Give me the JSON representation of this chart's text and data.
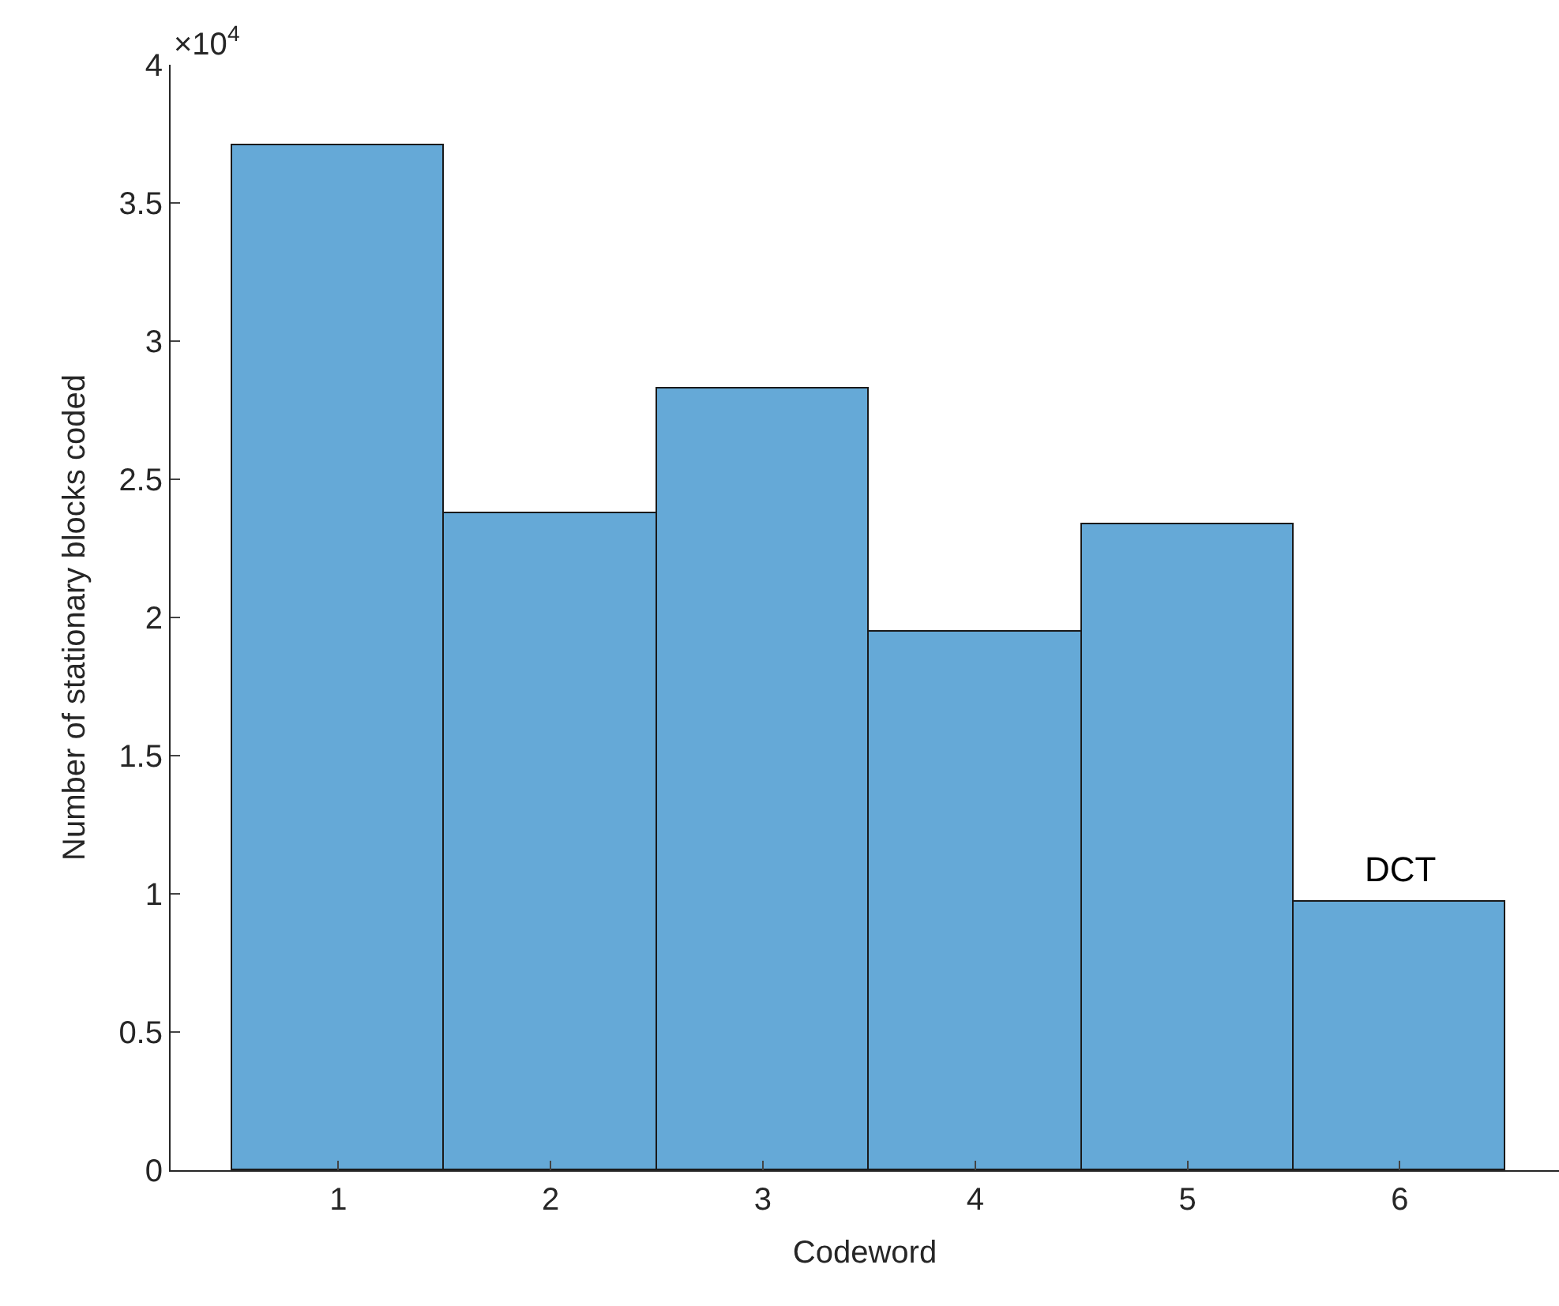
{
  "chart_data": {
    "type": "bar",
    "xlabel": "Codeword",
    "ylabel": "Number of stationary blocks coded",
    "categories": [
      "1",
      "2",
      "3",
      "4",
      "5",
      "6"
    ],
    "values": [
      3.71,
      2.38,
      2.83,
      1.95,
      2.34,
      0.97
    ],
    "color": "#65a9d7",
    "ylim": [
      0,
      4
    ],
    "yticks": [
      0,
      0.5,
      1,
      1.5,
      2,
      2.5,
      3,
      3.5,
      4
    ],
    "annotations": [
      "×10$^{4}$",
      {
        "text": "DCT",
        "x": "6",
        "y": 0.97
      }
    ]
  }
}
